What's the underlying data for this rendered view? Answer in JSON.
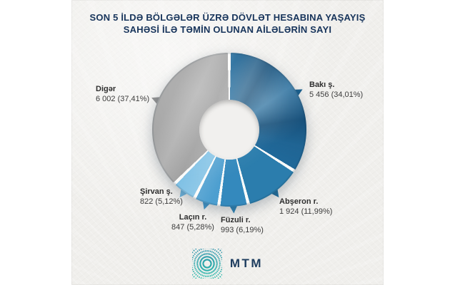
{
  "title": {
    "line1": "SON 5 İLDƏ BÖLGƏLƏR ÜZRƏ DÖVLƏT HESABINA YAŞAYIŞ",
    "line2": "SAHƏSİ İLƏ TƏMİN OLUNAN AİLƏLƏRİN SAYI"
  },
  "chart_data": {
    "type": "pie",
    "donut": true,
    "start_angle_deg": 0,
    "direction": "clockwise",
    "title": "SON 5 İLDƏ BÖLGƏLƏR ÜZRƏ DÖVLƏT HESABINA YAŞAYIŞ SAHƏSİ İLƏ TƏMİN OLUNAN AİLƏLƏRİN SAYI",
    "labels": [
      "Bakı ş.",
      "Abşeron r.",
      "Füzuli r.",
      "Laçın r.",
      "Şirvan ş.",
      "Digər"
    ],
    "values": [
      5456,
      1924,
      993,
      847,
      822,
      6002
    ],
    "percents": [
      34.01,
      11.99,
      6.19,
      5.28,
      5.12,
      37.41
    ],
    "keys": [
      "baki",
      "abseron",
      "fuzuli",
      "lacin",
      "sirvan",
      "diger"
    ],
    "colors": [
      "#20699a",
      "#2b7dad",
      "#3489bd",
      "#4d9fd0",
      "#7fc1e5",
      "#a2a2a2"
    ],
    "pointer_colors": [
      "#1b618f",
      "#236f9d",
      "#2f84b5",
      "#4498cb",
      "#6fb6de",
      "#939393"
    ]
  },
  "callouts": [
    {
      "name": "Bakı ş.",
      "value": "5 456 (34,01%)"
    },
    {
      "name": "Abşeron r.",
      "value": "1 924 (11,99%)"
    },
    {
      "name": "Füzuli r.",
      "value": "993 (6,19%)"
    },
    {
      "name": "Laçın r.",
      "value": "847 (5,28%)"
    },
    {
      "name": "Şirvan ş.",
      "value": "822 (5,12%)"
    },
    {
      "name": "Digər",
      "value": "6 002 (37,41%)"
    }
  ],
  "logo": {
    "text": "MTM"
  },
  "theme": {
    "title_color": "#17345b",
    "label_color": "#383838",
    "card_bg": "#f0efec",
    "separator_color": "#fbfbfa",
    "logo_teal": "#2cbcab",
    "logo_blue": "#2f93ab"
  }
}
